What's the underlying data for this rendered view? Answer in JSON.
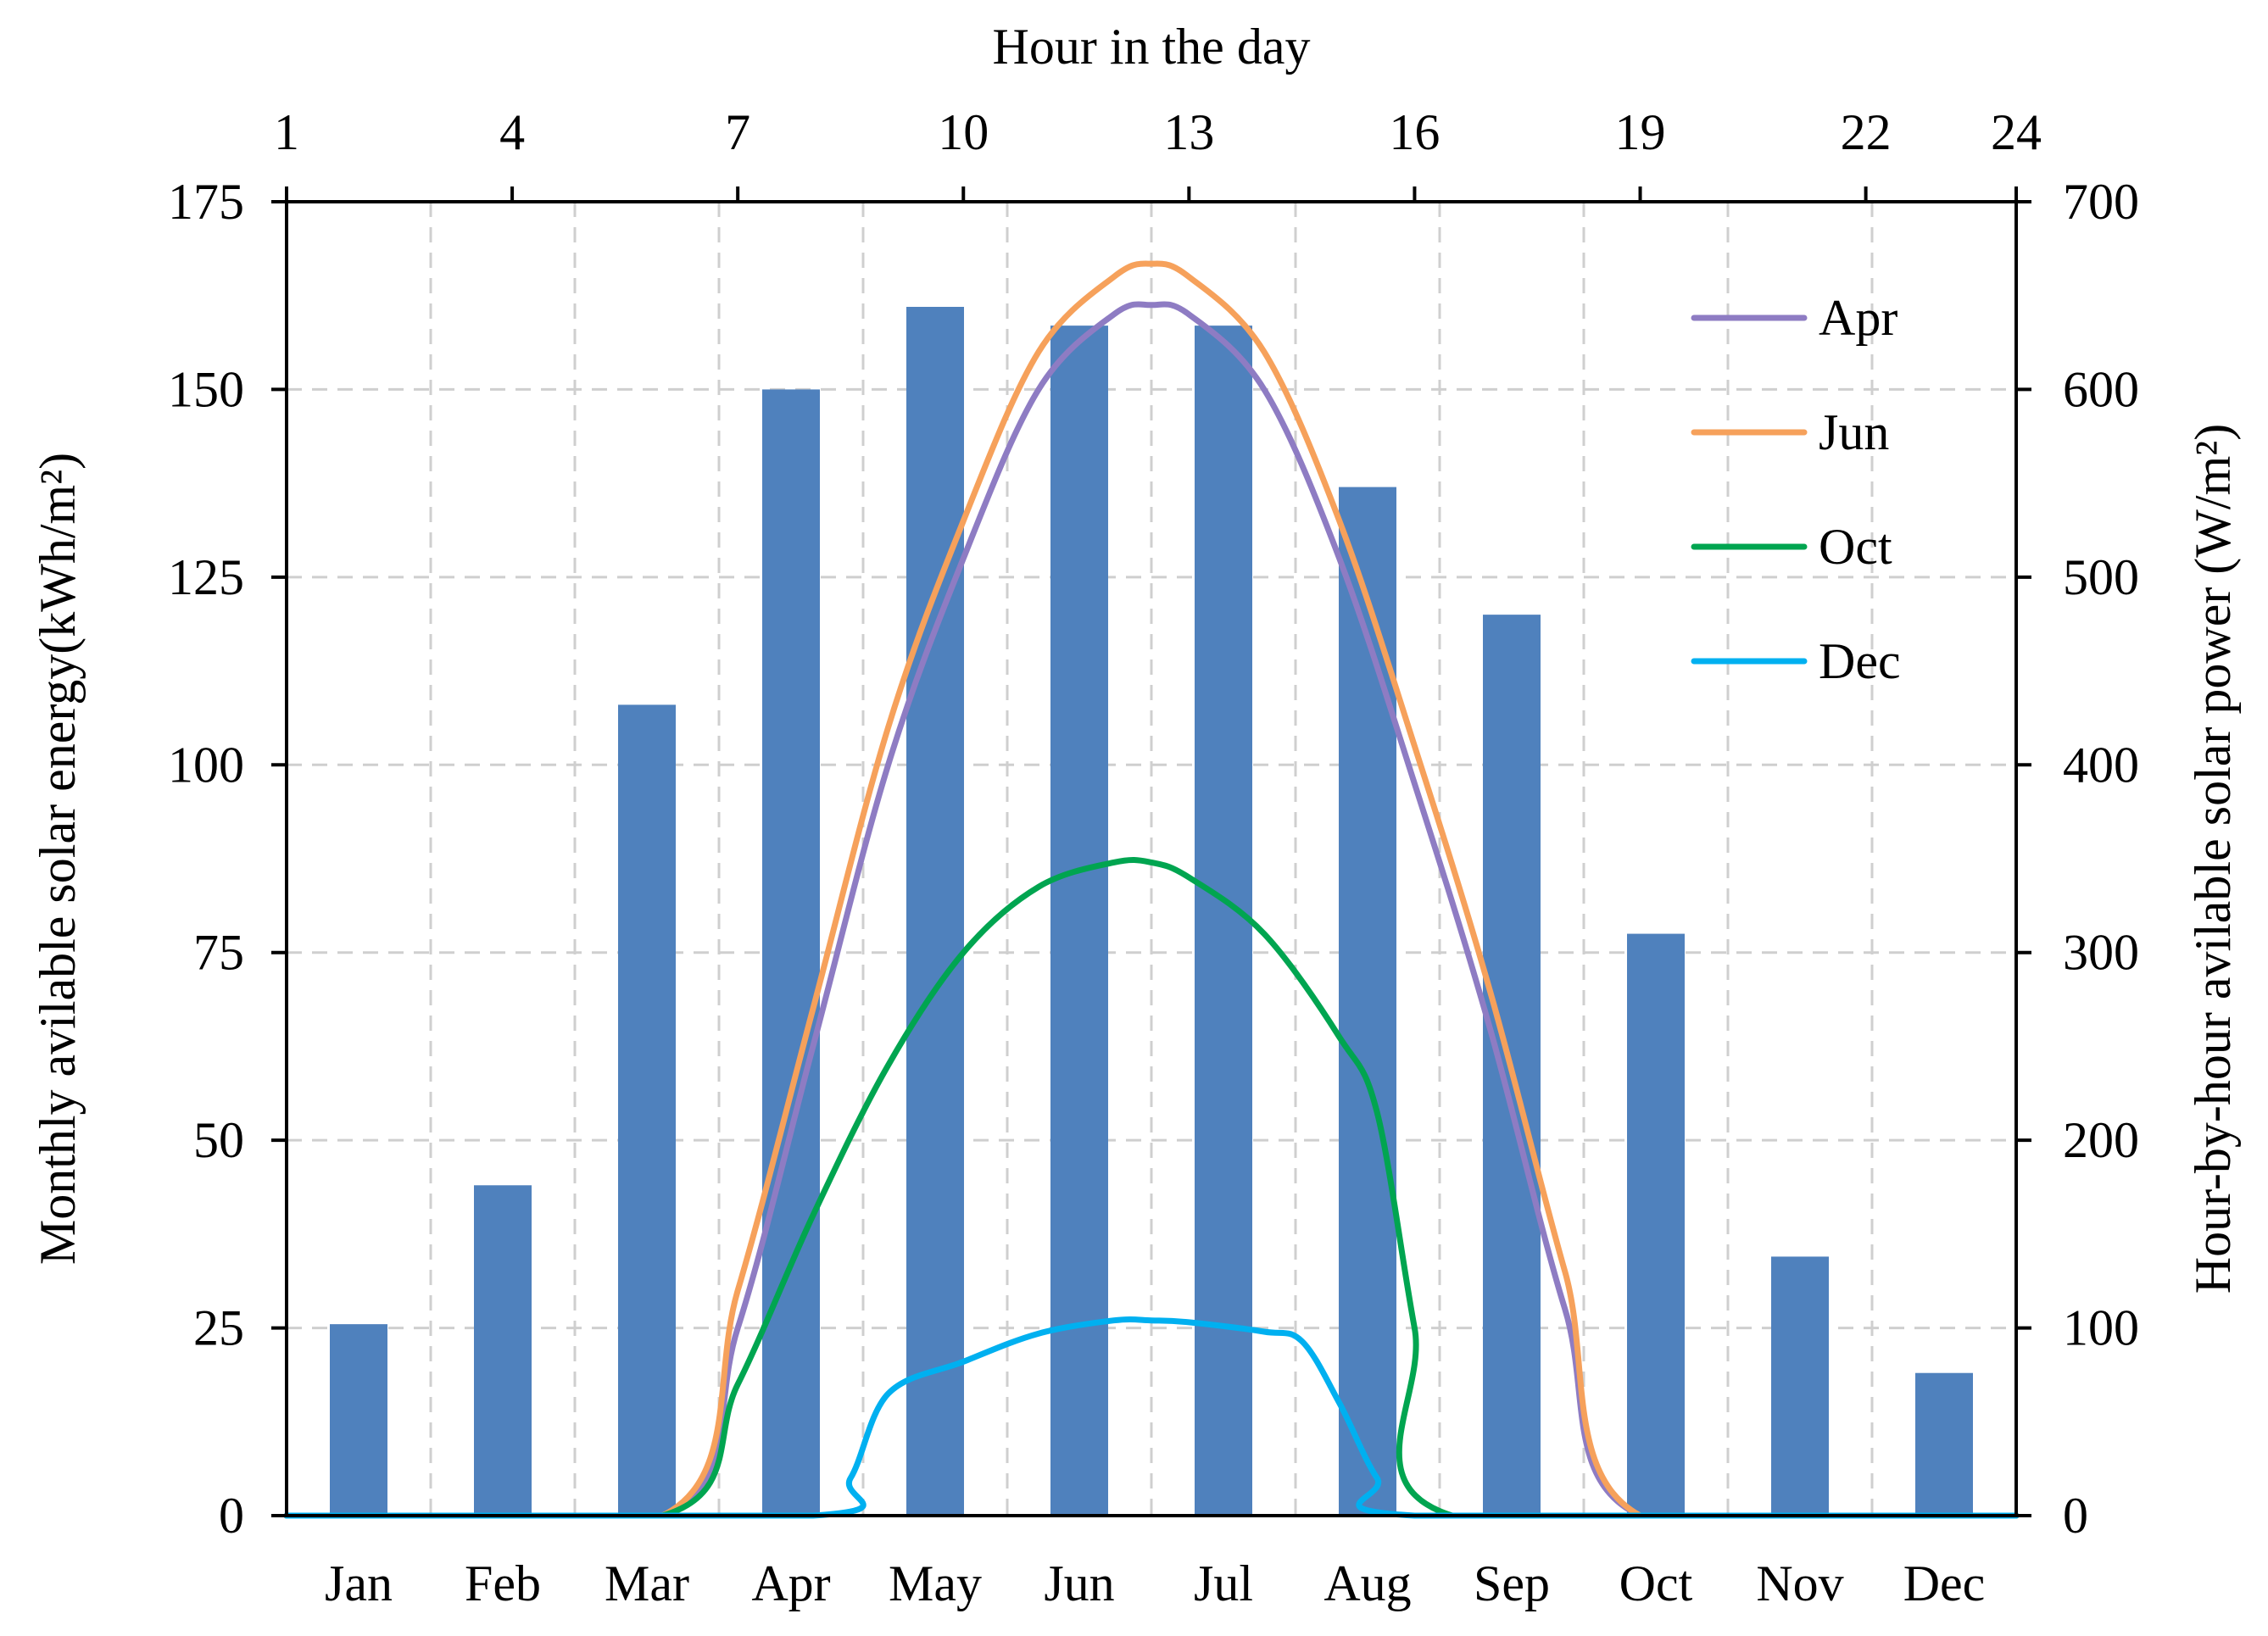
{
  "chart_data": {
    "type": "bar+line",
    "title": "",
    "top_axis": {
      "label": "Hour in the day",
      "range": [
        1,
        24
      ],
      "ticks": [
        1,
        4,
        7,
        10,
        13,
        16,
        19,
        22,
        24
      ]
    },
    "left_axis": {
      "label": "Monthly avilable solar energy(kWh/m²)",
      "range": [
        0,
        175
      ],
      "ticks": [
        0,
        25,
        50,
        75,
        100,
        125,
        150,
        175
      ]
    },
    "right_axis": {
      "label": "Hour-by-hour avilable solar power (W/m²)",
      "range": [
        0,
        700
      ],
      "ticks": [
        0,
        100,
        200,
        300,
        400,
        500,
        600,
        700
      ]
    },
    "grid": true,
    "legend_position": "top-right",
    "bars": {
      "name": "Monthly available solar energy",
      "color": "#4f81bd",
      "categories": [
        "Jan",
        "Feb",
        "Mar",
        "Apr",
        "May",
        "Jun",
        "Jul",
        "Aug",
        "Sep",
        "Oct",
        "Nov",
        "Dec"
      ],
      "values": [
        25.5,
        44,
        108,
        150,
        161,
        158.5,
        158.5,
        137,
        120,
        77.5,
        34.5,
        19
      ]
    },
    "series": [
      {
        "name": "Apr",
        "color": "#8e7cc3",
        "points": [
          [
            1,
            0
          ],
          [
            6,
            0
          ],
          [
            7,
            100
          ],
          [
            8,
            250
          ],
          [
            9,
            400
          ],
          [
            10,
            510
          ],
          [
            11,
            600
          ],
          [
            12,
            640
          ],
          [
            12.5,
            645
          ],
          [
            13,
            640
          ],
          [
            14,
            600
          ],
          [
            15,
            510
          ],
          [
            16,
            390
          ],
          [
            17,
            260
          ],
          [
            18,
            110
          ],
          [
            19,
            0
          ],
          [
            24,
            0
          ]
        ]
      },
      {
        "name": "Jun",
        "color": "#f6a15b",
        "points": [
          [
            1,
            0
          ],
          [
            6,
            0
          ],
          [
            7,
            120
          ],
          [
            8,
            270
          ],
          [
            9,
            420
          ],
          [
            10,
            530
          ],
          [
            11,
            620
          ],
          [
            12,
            660
          ],
          [
            12.5,
            667
          ],
          [
            13,
            660
          ],
          [
            14,
            620
          ],
          [
            15,
            530
          ],
          [
            16,
            410
          ],
          [
            17,
            280
          ],
          [
            18,
            130
          ],
          [
            19,
            0
          ],
          [
            24,
            0
          ]
        ]
      },
      {
        "name": "Oct",
        "color": "#00a550",
        "points": [
          [
            1,
            0
          ],
          [
            6,
            0
          ],
          [
            7,
            70
          ],
          [
            8,
            160
          ],
          [
            9,
            240
          ],
          [
            10,
            300
          ],
          [
            11,
            335
          ],
          [
            12,
            348
          ],
          [
            12.5,
            348
          ],
          [
            13,
            340
          ],
          [
            14,
            310
          ],
          [
            15,
            255
          ],
          [
            15.5,
            215
          ],
          [
            16,
            100
          ],
          [
            16.5,
            0
          ],
          [
            24,
            0
          ]
        ]
      },
      {
        "name": "Dec",
        "color": "#00b0f0",
        "points": [
          [
            1,
            0
          ],
          [
            8,
            0
          ],
          [
            8.5,
            20
          ],
          [
            9,
            65
          ],
          [
            10,
            82
          ],
          [
            11,
            97
          ],
          [
            12,
            104
          ],
          [
            12.5,
            104
          ],
          [
            13,
            103
          ],
          [
            14,
            98
          ],
          [
            14.5,
            93
          ],
          [
            15,
            60
          ],
          [
            15.5,
            20
          ],
          [
            16,
            0
          ],
          [
            24,
            0
          ]
        ]
      }
    ]
  }
}
